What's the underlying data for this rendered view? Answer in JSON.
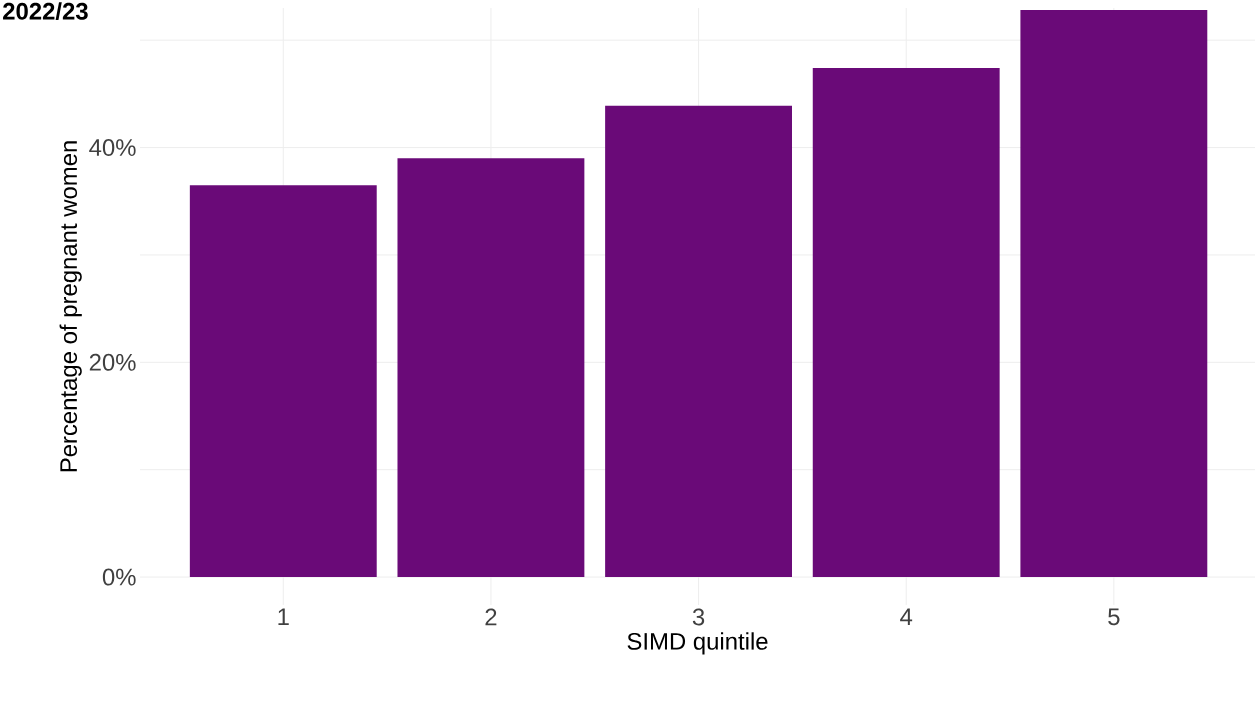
{
  "chart_data": {
    "type": "bar",
    "title": "2022/23",
    "xlabel": "SIMD quintile",
    "ylabel": "Percentage of pregnant women",
    "categories": [
      "1",
      "2",
      "3",
      "4",
      "5"
    ],
    "values": [
      36.5,
      39.0,
      43.9,
      47.4,
      52.8
    ],
    "color": "#6a0a78",
    "ylim": [
      -2.6,
      53
    ],
    "yticks": [
      {
        "value": 0,
        "label": "0%"
      },
      {
        "value": 10,
        "label": null
      },
      {
        "value": 20,
        "label": "20%"
      },
      {
        "value": 30,
        "label": null
      },
      {
        "value": 40,
        "label": "40%"
      },
      {
        "value": 50,
        "label": null
      }
    ],
    "grid": true
  }
}
